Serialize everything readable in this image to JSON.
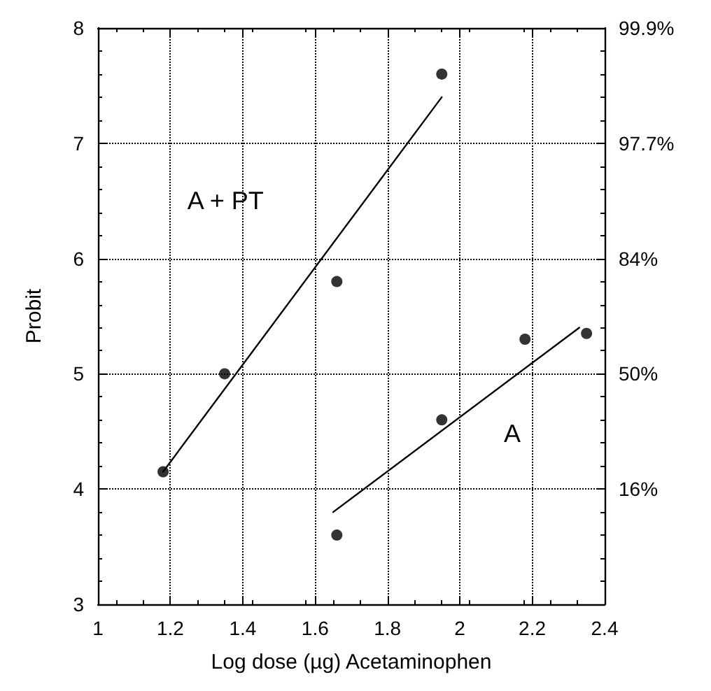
{
  "chart_data": {
    "type": "scatter",
    "xlabel": "Log dose (µg) Acetaminophen",
    "ylabel": "Probit",
    "xlim": [
      1,
      2.4
    ],
    "xticks": [
      1,
      1.2,
      1.4,
      1.6,
      1.8,
      2,
      2.2,
      2.4
    ],
    "ylim": [
      3,
      8
    ],
    "yticks": [
      3,
      4,
      5,
      6,
      7,
      8
    ],
    "y2_categories": [
      "99.9%",
      "97.7%",
      "84%",
      "50%",
      "16%",
      null
    ],
    "grid": true,
    "marker": "circle",
    "series": [
      {
        "color": "#000000",
        "x": [
          1.18,
          1.35,
          1.66,
          1.95
        ],
        "values": [
          4.15,
          5.0,
          5.8,
          7.6
        ]
      },
      {
        "color": "#000000",
        "x": [
          1.66,
          1.95,
          2.18,
          2.35
        ],
        "values": [
          3.6,
          4.6,
          5.3,
          5.35
        ]
      },
      {
        "type": "line",
        "name": "A + PT",
        "color": "#000000",
        "marker": "none",
        "x": [
          1.18,
          1.95
        ],
        "values": [
          4.15,
          7.4
        ]
      },
      {
        "type": "line",
        "name": "A",
        "color": "#000000",
        "marker": "none",
        "x": [
          1.65,
          2.33
        ],
        "values": [
          3.8,
          5.4
        ]
      }
    ]
  }
}
